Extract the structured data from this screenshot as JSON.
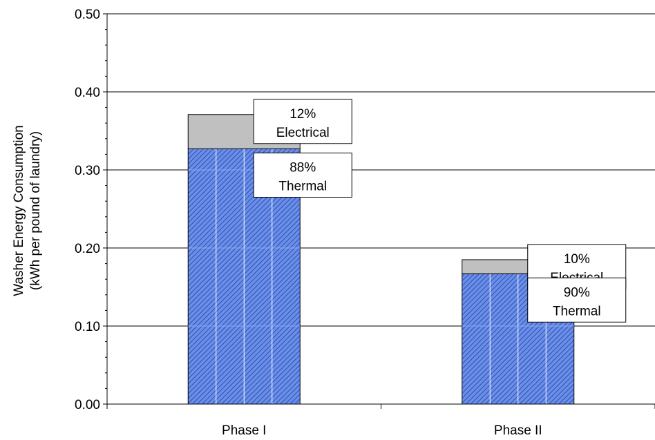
{
  "chart_data": {
    "type": "bar",
    "stacked": true,
    "categories": [
      "Phase I",
      "Phase II"
    ],
    "series": [
      {
        "values": [
          0.327,
          0.167
        ],
        "color": "#6b8fe6",
        "pattern": "diagonal-hatch"
      },
      {
        "values": [
          0.044,
          0.018
        ],
        "color": "#c0c0c0"
      }
    ],
    "ylabel_line1": "Washer Energy Consumption",
    "ylabel_line2": "(kWh per pound of laundry)",
    "ylim": [
      0,
      0.5
    ],
    "yticks": [
      "0.00",
      "0.10",
      "0.20",
      "0.30",
      "0.40",
      "0.50"
    ],
    "grid": true,
    "annotations": [
      {
        "category": "Phase I",
        "line1": "12%",
        "line2": "Electrical"
      },
      {
        "category": "Phase I",
        "line1": "88%",
        "line2": "Thermal"
      },
      {
        "category": "Phase II",
        "line1": "10%",
        "line2": "Electrical"
      },
      {
        "category": "Phase II",
        "line1": "90%",
        "line2": "Thermal"
      }
    ]
  }
}
